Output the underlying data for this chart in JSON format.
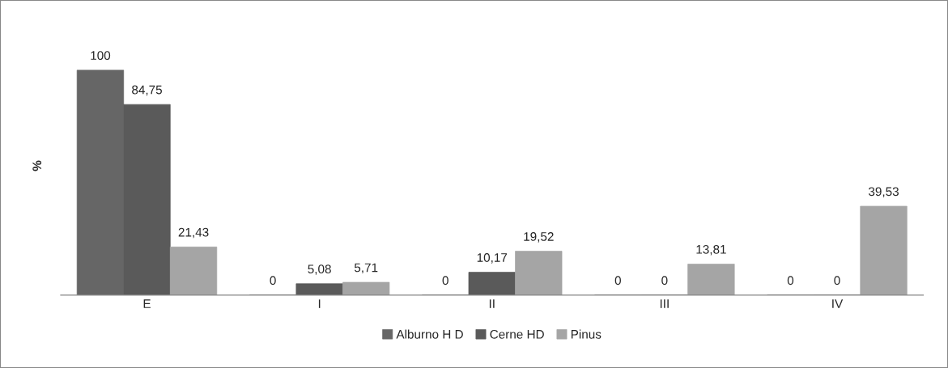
{
  "chart_data": {
    "type": "bar",
    "ylabel": "%",
    "categories": [
      "E",
      "I",
      "II",
      "III",
      "IV"
    ],
    "series": [
      {
        "name": "Alburno H D",
        "color": "#666666",
        "values": [
          100,
          0,
          0,
          0,
          0
        ],
        "value_labels": [
          "100",
          "0",
          "0",
          "0",
          "0"
        ]
      },
      {
        "name": "Cerne HD",
        "color": "#5a5a5a",
        "values": [
          84.75,
          5.08,
          10.17,
          0,
          0
        ],
        "value_labels": [
          "84,75",
          "5,08",
          "10,17",
          "0",
          "0"
        ]
      },
      {
        "name": "Pinus",
        "color": "#a5a5a5",
        "values": [
          21.43,
          5.71,
          19.52,
          13.81,
          39.53
        ],
        "value_labels": [
          "21,43",
          "5,71",
          "19,52",
          "13,81",
          "39,53"
        ]
      }
    ],
    "tick_labels": "x",
    "grid": false,
    "legend": "bottom"
  }
}
